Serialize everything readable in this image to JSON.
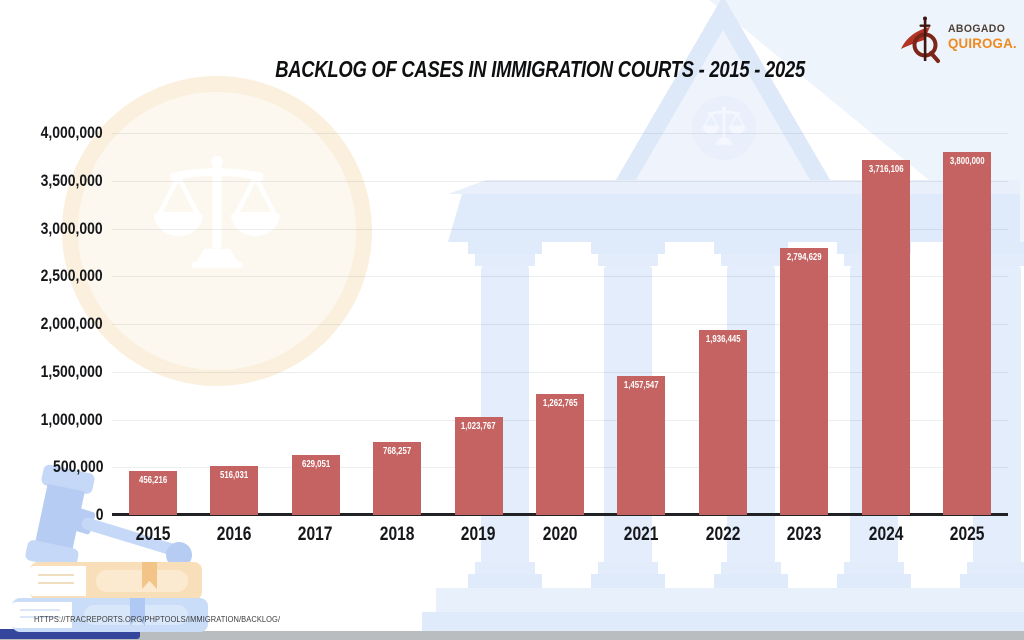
{
  "header": {
    "title": "BACKLOG OF CASES IN IMMIGRATION COURTS - 2015 - 2025"
  },
  "logo": {
    "name_top": "ABOGADO",
    "name_bottom": "QUIROGA.",
    "accent_color": "#ee8a1f",
    "dark_color": "#4e3f35",
    "icon": "abogado-quiroga-q-sword-swoosh-logo",
    "icon_swoosh_color": "#b33425",
    "icon_q_color": "#7c2619"
  },
  "chart_data": {
    "type": "bar",
    "title": "BACKLOG OF CASES IN IMMIGRATION COURTS - 2015 - 2025",
    "categories": [
      "2015",
      "2016",
      "2017",
      "2018",
      "2019",
      "2020",
      "2021",
      "2022",
      "2023",
      "2024",
      "2025"
    ],
    "values": [
      456216,
      516031,
      629051,
      768257,
      1023767,
      1262765,
      1457547,
      1936445,
      2794629,
      3716106,
      3800000
    ],
    "value_labels": [
      "456,216",
      "516,031",
      "629,051",
      "768,257",
      "1,023,767",
      "1,262,765",
      "1,457,547",
      "1,936,445",
      "2,794,629",
      "3,716,106",
      "3,800,000"
    ],
    "bar_color": "#c56362",
    "value_label_color": "#ffffff",
    "xlabel": "",
    "ylabel": "",
    "ylim": [
      0,
      4000000
    ],
    "ytick_step": 500000,
    "yticks_top_to_bottom": [
      "4,000,000",
      "3,500,000",
      "3,000,000",
      "2,500,000",
      "2,000,000",
      "1,500,000",
      "1,000,000",
      "500,000",
      "0"
    ],
    "grid": true,
    "legend": false
  },
  "source": {
    "url": "HTTPS://TRACREPORTS.ORG/PHPTOOLS/IMMIGRATION/BACKLOG/"
  },
  "background": {
    "courthouse_icon": "courthouse-columns-building",
    "pediment_emblem_icon": "scales-of-justice",
    "justice_circle_icon": "scales-of-justice-seal",
    "gavel_icon": "gavel",
    "books_icon": "law-books-stack"
  }
}
